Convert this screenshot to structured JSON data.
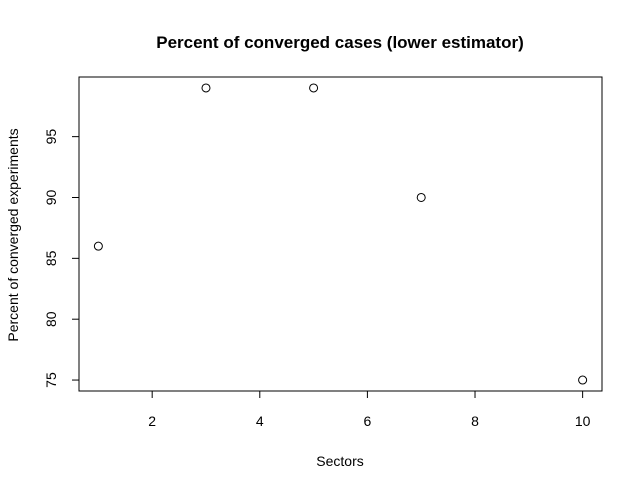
{
  "chart_data": {
    "type": "scatter",
    "title": "Percent of converged cases (lower estimator)",
    "xlabel": "Sectors",
    "ylabel": "Percent of converged experiments",
    "x": [
      1,
      3,
      5,
      7,
      10
    ],
    "y": [
      86,
      99,
      99,
      90,
      75
    ],
    "xlim": [
      0.64,
      10.36
    ],
    "ylim": [
      74.1,
      99.9
    ],
    "x_ticks": [
      2,
      4,
      6,
      8,
      10
    ],
    "y_ticks": [
      75,
      80,
      85,
      90,
      95
    ],
    "grid": false,
    "marker": "open-circle",
    "colors": {
      "point": "#000000",
      "axis": "#000000",
      "background": "#ffffff"
    }
  }
}
